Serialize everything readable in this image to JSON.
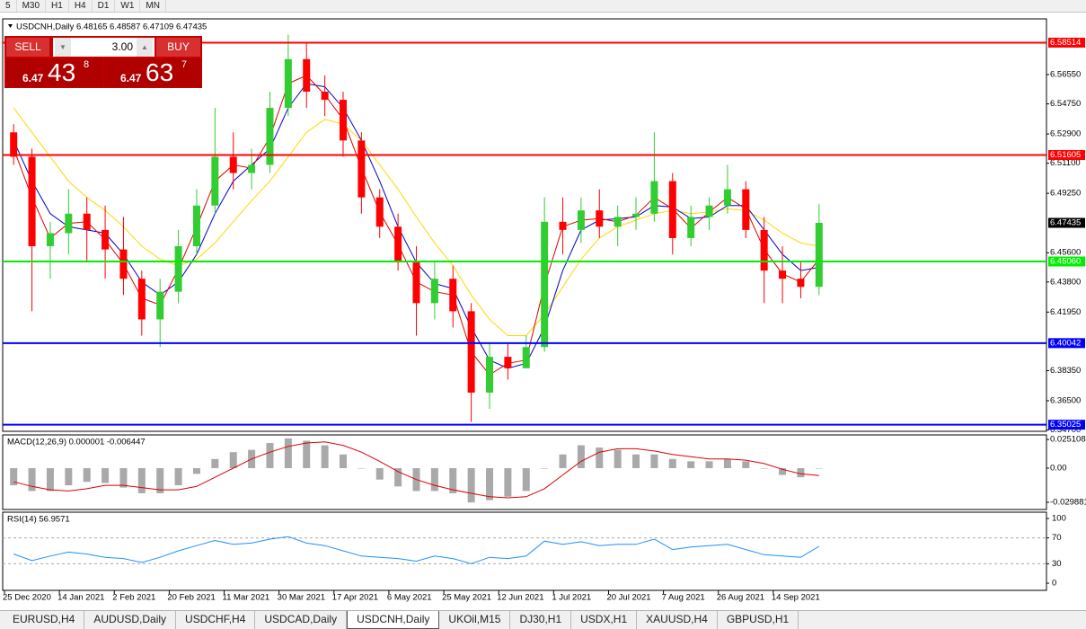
{
  "toolbar": {
    "timeframes": [
      "5",
      "M30",
      "H1",
      "H4",
      "D1",
      "W1",
      "MN"
    ]
  },
  "chart": {
    "header": "USDCNH,Daily  6.48165 6.48587 6.47109 6.47435",
    "trade_panel": {
      "sell": "SELL",
      "buy": "BUY",
      "volume": "3.00",
      "bid": {
        "prefix": "6.47",
        "big": "43",
        "sup": "8"
      },
      "ask": {
        "prefix": "6.47",
        "big": "63",
        "sup": "7"
      }
    },
    "type": "candlestick",
    "ylim": [
      6.3473,
      6.5992
    ],
    "yticks": [
      {
        "value": 6.5655,
        "label": "6.56550"
      },
      {
        "value": 6.5475,
        "label": "6.54750"
      },
      {
        "value": 6.529,
        "label": "6.52900"
      },
      {
        "value": 6.511,
        "label": "6.51100"
      },
      {
        "value": 6.4925,
        "label": "6.49250"
      },
      {
        "value": 6.456,
        "label": "6.45600"
      },
      {
        "value": 6.438,
        "label": "6.43800"
      },
      {
        "value": 6.4195,
        "label": "6.41950"
      },
      {
        "value": 6.3835,
        "label": "6.38350"
      },
      {
        "value": 6.365,
        "label": "6.36500"
      },
      {
        "value": 6.347,
        "label": "6.34700"
      }
    ],
    "levels": [
      6.58514,
      6.51605,
      {
        "value": 6.4506,
        "label": "6.45060"
      },
      6.40042,
      6.35025
    ],
    "level_colors": [
      "#ff0000",
      "#ff0000",
      "#00ee00",
      "#0000ff",
      "#0000ff"
    ],
    "last_price": 6.47435,
    "x_labels": [
      "25 Dec 2020",
      "14 Jan 2021",
      "2 Feb 2021",
      "20 Feb 2021",
      "11 Mar 2021",
      "30 Mar 2021",
      "17 Apr 2021",
      "6 May 2021",
      "25 May 2021",
      "12 Jun 2021",
      "1 Jul 2021",
      "20 Jul 2021",
      "7 Aug 2021",
      "26 Aug 2021",
      "14 Sep 2021"
    ],
    "colors": {
      "up": "#32cd32",
      "down": "#ff0000"
    },
    "candles": [
      [
        6.53,
        6.535,
        6.51,
        6.515
      ],
      [
        6.515,
        6.52,
        6.42,
        6.46
      ],
      [
        6.46,
        6.475,
        6.44,
        6.468
      ],
      [
        6.468,
        6.495,
        6.455,
        6.48
      ],
      [
        6.48,
        6.49,
        6.45,
        6.47
      ],
      [
        6.47,
        6.485,
        6.44,
        6.458
      ],
      [
        6.458,
        6.478,
        6.43,
        6.44
      ],
      [
        6.44,
        6.445,
        6.405,
        6.415
      ],
      [
        6.415,
        6.44,
        6.398,
        6.432
      ],
      [
        6.432,
        6.47,
        6.425,
        6.46
      ],
      [
        6.46,
        6.495,
        6.455,
        6.485
      ],
      [
        6.485,
        6.545,
        6.48,
        6.515
      ],
      [
        6.515,
        6.53,
        6.495,
        6.505
      ],
      [
        6.505,
        6.52,
        6.495,
        6.51
      ],
      [
        6.51,
        6.555,
        6.505,
        6.545
      ],
      [
        6.545,
        6.59,
        6.54,
        6.575
      ],
      [
        6.575,
        6.585,
        6.545,
        6.555
      ],
      [
        6.555,
        6.565,
        6.54,
        6.55
      ],
      [
        6.55,
        6.555,
        6.515,
        6.525
      ],
      [
        6.525,
        6.53,
        6.48,
        6.49
      ],
      [
        6.49,
        6.495,
        6.465,
        6.472
      ],
      [
        6.472,
        6.48,
        6.445,
        6.45
      ],
      [
        6.45,
        6.46,
        6.405,
        6.425
      ],
      [
        6.425,
        6.45,
        6.415,
        6.44
      ],
      [
        6.44,
        6.448,
        6.41,
        6.42
      ],
      [
        6.42,
        6.425,
        6.352,
        6.37
      ],
      [
        6.37,
        6.4,
        6.36,
        6.392
      ],
      [
        6.392,
        6.4,
        6.378,
        6.385
      ],
      [
        6.385,
        6.405,
        6.385,
        6.398
      ],
      [
        6.398,
        6.49,
        6.395,
        6.475
      ],
      [
        6.475,
        6.49,
        6.455,
        6.47
      ],
      [
        6.47,
        6.49,
        6.462,
        6.482
      ],
      [
        6.482,
        6.495,
        6.465,
        6.472
      ],
      [
        6.472,
        6.485,
        6.46,
        6.478
      ],
      [
        6.478,
        6.49,
        6.47,
        6.48
      ],
      [
        6.48,
        6.53,
        6.475,
        6.5
      ],
      [
        6.5,
        6.505,
        6.455,
        6.465
      ],
      [
        6.465,
        6.485,
        6.46,
        6.478
      ],
      [
        6.478,
        6.49,
        6.47,
        6.485
      ],
      [
        6.485,
        6.51,
        6.48,
        6.495
      ],
      [
        6.495,
        6.5,
        6.465,
        6.47
      ],
      [
        6.47,
        6.478,
        6.425,
        6.445
      ],
      [
        6.445,
        6.46,
        6.425,
        6.44
      ],
      [
        6.44,
        6.45,
        6.428,
        6.435
      ],
      [
        6.435,
        6.48587,
        6.43,
        6.47435
      ]
    ],
    "moving_averages": [
      {
        "color": "#ffd700",
        "values": [
          6.545,
          6.53,
          6.515,
          6.5,
          6.49,
          6.482,
          6.472,
          6.46,
          6.452,
          6.448,
          6.452,
          6.462,
          6.475,
          6.488,
          6.5,
          6.515,
          6.53,
          6.538,
          6.535,
          6.525,
          6.51,
          6.495,
          6.478,
          6.462,
          6.448,
          6.43,
          6.415,
          6.405,
          6.405,
          6.418,
          6.435,
          6.452,
          6.465,
          6.472,
          6.476,
          6.48,
          6.482,
          6.48,
          6.481,
          6.483,
          6.482,
          6.476,
          6.468,
          6.462,
          6.46
        ]
      },
      {
        "color": "#0000cc",
        "values": [
          6.525,
          6.5,
          6.48,
          6.472,
          6.47,
          6.468,
          6.455,
          6.438,
          6.43,
          6.438,
          6.455,
          6.48,
          6.5,
          6.51,
          6.52,
          6.545,
          6.56,
          6.558,
          6.545,
          6.525,
          6.5,
          6.472,
          6.45,
          6.437,
          6.434,
          6.41,
          6.39,
          6.385,
          6.388,
          6.41,
          6.445,
          6.47,
          6.476,
          6.477,
          6.478,
          6.485,
          6.484,
          6.477,
          6.478,
          6.485,
          6.485,
          6.47,
          6.455,
          6.445,
          6.447
        ]
      },
      {
        "color": "#dd0000",
        "values": [
          6.52,
          6.49,
          6.465,
          6.474,
          6.475,
          6.464,
          6.449,
          6.428,
          6.424,
          6.446,
          6.472,
          6.5,
          6.51,
          6.508,
          6.527,
          6.56,
          6.565,
          6.553,
          6.538,
          6.508,
          6.481,
          6.461,
          6.438,
          6.432,
          6.43,
          6.395,
          6.381,
          6.388,
          6.39,
          6.436,
          6.472,
          6.476,
          6.477,
          6.475,
          6.479,
          6.49,
          6.483,
          6.471,
          6.481,
          6.49,
          6.483,
          6.458,
          6.443,
          6.438,
          6.452
        ]
      }
    ],
    "macd": {
      "label": "MACD(12,26,9) 0.000001 -0.006447",
      "ylim": [
        -0.0354,
        0.0283
      ],
      "yticks": [
        0.025108,
        {
          "value": 0,
          "label": "0.00"
        },
        -0.029881
      ],
      "histogram_color": "#a9a9a9",
      "signal_color": "#dd0000",
      "histogram": [
        -0.015,
        -0.02,
        -0.02,
        -0.015,
        -0.012,
        -0.013,
        -0.017,
        -0.022,
        -0.022,
        -0.015,
        -0.005,
        0.008,
        0.014,
        0.016,
        0.022,
        0.026,
        0.024,
        0.02,
        0.012,
        0.0,
        -0.01,
        -0.016,
        -0.02,
        -0.02,
        -0.022,
        -0.03,
        -0.028,
        -0.025,
        -0.02,
        0.0,
        0.012,
        0.02,
        0.018,
        0.016,
        0.012,
        0.012,
        0.008,
        0.006,
        0.006,
        0.008,
        0.006,
        0.0,
        -0.006,
        -0.008,
        1e-06
      ],
      "signal": [
        -0.012,
        -0.016,
        -0.019,
        -0.02,
        -0.018,
        -0.015,
        -0.015,
        -0.017,
        -0.019,
        -0.019,
        -0.016,
        -0.008,
        0.0,
        0.008,
        0.014,
        0.019,
        0.022,
        0.023,
        0.02,
        0.014,
        0.006,
        -0.003,
        -0.01,
        -0.015,
        -0.019,
        -0.022,
        -0.025,
        -0.026,
        -0.025,
        -0.018,
        -0.006,
        0.006,
        0.014,
        0.017,
        0.017,
        0.015,
        0.012,
        0.01,
        0.008,
        0.008,
        0.007,
        0.004,
        -0.001,
        -0.005,
        -0.006447
      ]
    },
    "rsi": {
      "label": "RSI(14) 56.9571",
      "ylim": [
        -8.3,
        108.3
      ],
      "yticks": [
        100,
        70,
        30,
        0
      ],
      "levels": [
        70,
        30
      ],
      "color": "#1e90ff",
      "values": [
        45,
        35,
        42,
        48,
        45,
        40,
        38,
        32,
        40,
        50,
        58,
        66,
        60,
        62,
        68,
        72,
        62,
        58,
        50,
        42,
        40,
        38,
        34,
        42,
        38,
        30,
        40,
        38,
        42,
        65,
        60,
        64,
        58,
        60,
        60,
        68,
        52,
        56,
        58,
        60,
        52,
        44,
        42,
        40,
        56.9571
      ]
    }
  },
  "tabs": {
    "items": [
      "EURUSD,H4",
      "AUDUSD,Daily",
      "USDCHF,H4",
      "USDCAD,Daily",
      "USDCNH,Daily",
      "UKOil,M15",
      "DJ30,H1",
      "USDX,H1",
      "XAUUSD,H4",
      "GBPUSD,H1"
    ],
    "active": 4
  }
}
